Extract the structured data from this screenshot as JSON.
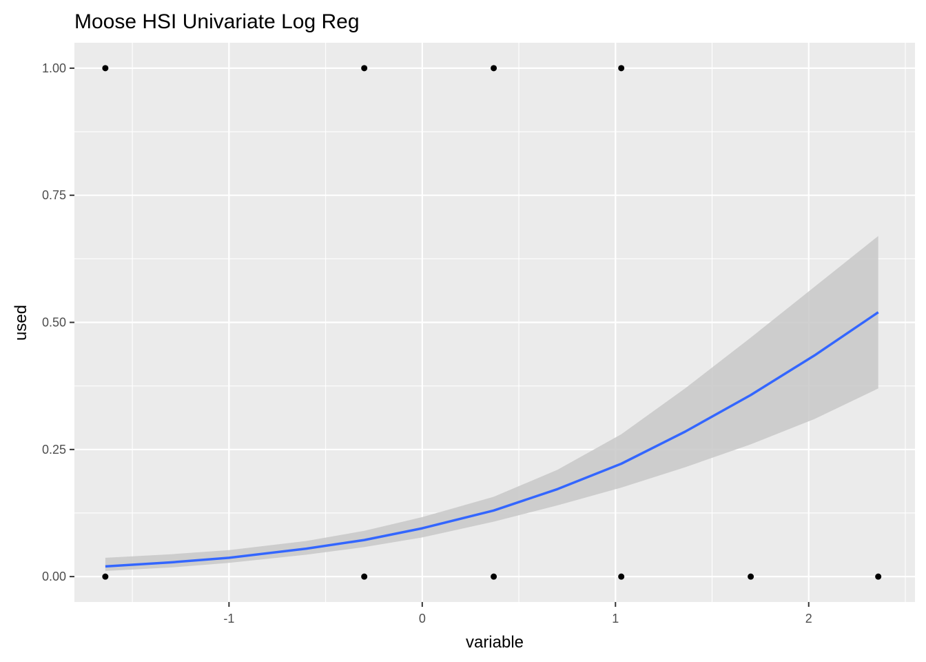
{
  "chart_data": {
    "type": "scatter",
    "title": "Moose HSI Univariate Log Reg",
    "xlabel": "variable",
    "ylabel": "used",
    "xlim": [
      -1.8,
      2.55
    ],
    "ylim": [
      -0.05,
      1.05
    ],
    "x_ticks": [
      -1,
      0,
      1,
      2
    ],
    "x_tick_labels": [
      "-1",
      "0",
      "1",
      "2"
    ],
    "y_ticks": [
      0,
      0.25,
      0.5,
      0.75,
      1
    ],
    "y_tick_labels": [
      "0.00",
      "0.25",
      "0.50",
      "0.75",
      "1.00"
    ],
    "grid": true,
    "points": [
      {
        "x": -1.64,
        "y": 1
      },
      {
        "x": -0.3,
        "y": 1
      },
      {
        "x": 0.37,
        "y": 1
      },
      {
        "x": 1.03,
        "y": 1
      },
      {
        "x": -1.64,
        "y": 0
      },
      {
        "x": -0.3,
        "y": 0
      },
      {
        "x": 0.37,
        "y": 0
      },
      {
        "x": 1.03,
        "y": 0
      },
      {
        "x": 1.7,
        "y": 0
      },
      {
        "x": 2.36,
        "y": 0
      }
    ],
    "fit": {
      "x": [
        -1.64,
        -1.3,
        -1.0,
        -0.6,
        -0.3,
        0.0,
        0.37,
        0.7,
        1.03,
        1.36,
        1.7,
        2.03,
        2.36
      ],
      "y": [
        0.02,
        0.028,
        0.037,
        0.055,
        0.072,
        0.095,
        0.13,
        0.172,
        0.222,
        0.285,
        0.357,
        0.435,
        0.52
      ],
      "lower": [
        0.011,
        0.018,
        0.027,
        0.043,
        0.058,
        0.077,
        0.108,
        0.14,
        0.175,
        0.215,
        0.26,
        0.31,
        0.37
      ],
      "upper": [
        0.037,
        0.044,
        0.052,
        0.07,
        0.09,
        0.117,
        0.157,
        0.21,
        0.28,
        0.37,
        0.47,
        0.57,
        0.67
      ]
    },
    "colors": {
      "panel": "#ebebeb",
      "grid": "#ffffff",
      "points": "#000000",
      "fit_line": "#3366ff",
      "ribbon": "#c8c8c8"
    }
  }
}
